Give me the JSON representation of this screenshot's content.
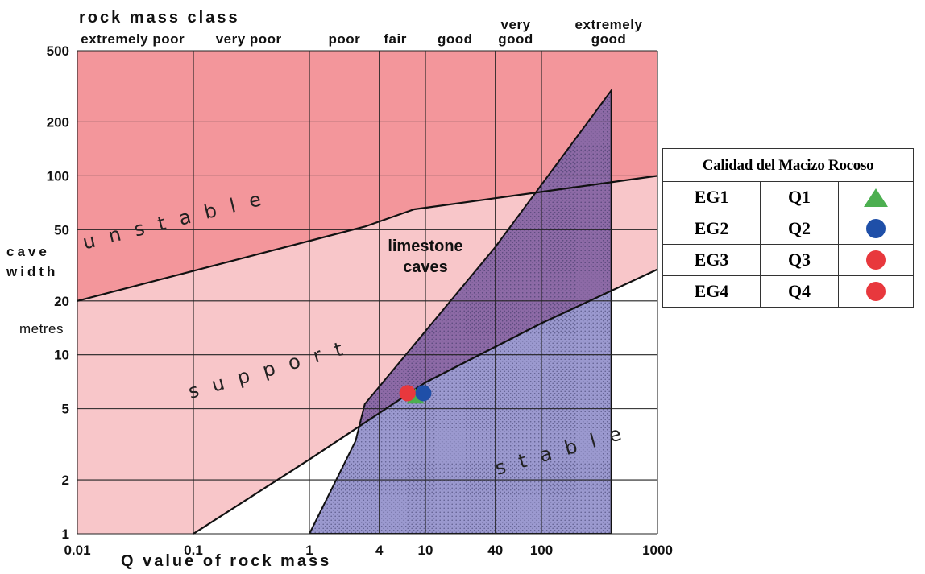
{
  "chart_data": {
    "type": "scatter",
    "title": "",
    "xlabel": "Q value of rock mass",
    "ylabel": [
      "cave",
      "width",
      "metres"
    ],
    "xscale": "log",
    "yscale": "log",
    "xlim": [
      0.01,
      1000
    ],
    "ylim": [
      1,
      500
    ],
    "x_ticks": [
      "0.01",
      "0.1",
      "1",
      "4",
      "10",
      "40",
      "100",
      "1000"
    ],
    "x_tick_values": [
      0.01,
      0.1,
      1,
      4,
      10,
      40,
      100,
      1000
    ],
    "y_ticks": [
      "1",
      "2",
      "5",
      "10",
      "20",
      "50",
      "100",
      "200",
      "500"
    ],
    "y_tick_values": [
      1,
      2,
      5,
      10,
      20,
      50,
      100,
      200,
      500
    ],
    "x_grid": [
      0.01,
      0.1,
      1,
      4,
      10,
      40,
      100,
      1000
    ],
    "y_grid": [
      1,
      2,
      5,
      10,
      20,
      50,
      100,
      200,
      500
    ],
    "top_header": "rock mass class",
    "rock_mass_classes": [
      {
        "lines": [
          "extremely poor"
        ],
        "x": 0.03
      },
      {
        "lines": [
          "very poor"
        ],
        "x": 0.3
      },
      {
        "lines": [
          "poor"
        ],
        "x": 2
      },
      {
        "lines": [
          "fair"
        ],
        "x": 5.5
      },
      {
        "lines": [
          "good"
        ],
        "x": 18
      },
      {
        "lines": [
          "very",
          "good"
        ],
        "x": 60
      },
      {
        "lines": [
          "extremely",
          "good"
        ],
        "x": 380
      }
    ],
    "class_boundaries": [
      0.1,
      1,
      4,
      10,
      40,
      100,
      400
    ],
    "regions": [
      {
        "label": "unstable",
        "color": "#f3969b"
      },
      {
        "label": "support",
        "color": "#f8c6c9"
      },
      {
        "label": "stable",
        "color": "#ffffff"
      },
      {
        "label": "limestone caves",
        "color": "#9b99cf",
        "overlay_color": "#8d6aa6"
      }
    ],
    "unstable_line": [
      [
        0.01,
        20
      ],
      [
        3,
        52
      ],
      [
        8,
        65
      ],
      [
        40,
        75
      ],
      [
        1000,
        100
      ]
    ],
    "stable_line": [
      [
        0.1,
        1
      ],
      [
        1,
        2.6
      ],
      [
        10,
        7
      ],
      [
        100,
        15
      ],
      [
        1000,
        30
      ]
    ],
    "cave_polygon": [
      [
        1,
        1
      ],
      [
        2.5,
        3.3
      ],
      [
        3,
        5.3
      ],
      [
        40,
        40
      ],
      [
        400,
        300
      ],
      [
        400,
        1
      ]
    ],
    "points": [
      {
        "name": "EG1",
        "q": "Q1",
        "x": 8.2,
        "y": 5.8,
        "shape": "triangle",
        "color": "#4caf50"
      },
      {
        "name": "EG2",
        "q": "Q2",
        "x": 9.6,
        "y": 6.1,
        "shape": "circle",
        "color": "#1f4fa8"
      },
      {
        "name": "EG3",
        "q": "Q3",
        "x": 7.0,
        "y": 6.1,
        "shape": "circle",
        "color": "#e8383d"
      },
      {
        "name": "EG4",
        "q": "Q4",
        "x": 7.0,
        "y": 6.1,
        "shape": "circle",
        "color": "#e8383d"
      }
    ]
  },
  "legend": {
    "title": "Calidad del Macizo Rocoso",
    "rows": [
      {
        "eg": "EG1",
        "q": "Q1",
        "symbol": "triangle",
        "color": "#4caf50"
      },
      {
        "eg": "EG2",
        "q": "Q2",
        "symbol": "circle",
        "color": "#1f4fa8"
      },
      {
        "eg": "EG3",
        "q": "Q3",
        "symbol": "circle",
        "color": "#e8383d"
      },
      {
        "eg": "EG4",
        "q": "Q4",
        "symbol": "circle",
        "color": "#e8383d"
      }
    ]
  }
}
